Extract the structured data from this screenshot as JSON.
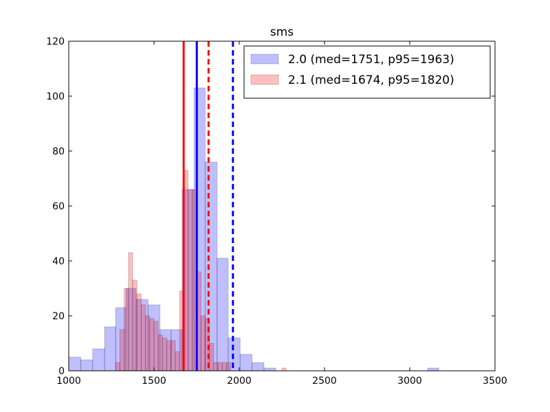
{
  "chart_data": {
    "type": "histogram",
    "title": "sms",
    "xlabel": "",
    "ylabel": "",
    "xlim": [
      1000,
      3500
    ],
    "ylim": [
      0,
      120
    ],
    "xticks": [
      1000,
      1500,
      2000,
      2500,
      3000,
      3500
    ],
    "yticks": [
      0,
      20,
      40,
      60,
      80,
      100,
      120
    ],
    "grid": false,
    "legend_position": "top-right",
    "series": [
      {
        "name": "2.0 (med=1751, p95=1963)",
        "fill": "#0000ff",
        "fill_opacity": 0.25,
        "bins": [
          {
            "x0": 1000,
            "x1": 1070,
            "count": 5
          },
          {
            "x0": 1070,
            "x1": 1140,
            "count": 4
          },
          {
            "x0": 1140,
            "x1": 1210,
            "count": 8
          },
          {
            "x0": 1210,
            "x1": 1275,
            "count": 16
          },
          {
            "x0": 1275,
            "x1": 1335,
            "count": 23
          },
          {
            "x0": 1335,
            "x1": 1395,
            "count": 30
          },
          {
            "x0": 1395,
            "x1": 1465,
            "count": 26
          },
          {
            "x0": 1465,
            "x1": 1535,
            "count": 24
          },
          {
            "x0": 1535,
            "x1": 1600,
            "count": 15
          },
          {
            "x0": 1600,
            "x1": 1665,
            "count": 15
          },
          {
            "x0": 1665,
            "x1": 1735,
            "count": 66
          },
          {
            "x0": 1735,
            "x1": 1800,
            "count": 103
          },
          {
            "x0": 1800,
            "x1": 1870,
            "count": 76
          },
          {
            "x0": 1870,
            "x1": 1935,
            "count": 41
          },
          {
            "x0": 1935,
            "x1": 2005,
            "count": 12
          },
          {
            "x0": 2005,
            "x1": 2075,
            "count": 6
          },
          {
            "x0": 2075,
            "x1": 2145,
            "count": 3
          },
          {
            "x0": 2145,
            "x1": 2215,
            "count": 1
          },
          {
            "x0": 3105,
            "x1": 3170,
            "count": 1
          }
        ],
        "median": 1751,
        "p95": 1963,
        "median_line_color": "#0000ff"
      },
      {
        "name": "2.1 (med=1674, p95=1820)",
        "fill": "#ff0000",
        "fill_opacity": 0.25,
        "bins": [
          {
            "x0": 1275,
            "x1": 1300,
            "count": 3
          },
          {
            "x0": 1300,
            "x1": 1325,
            "count": 15
          },
          {
            "x0": 1325,
            "x1": 1350,
            "count": 30
          },
          {
            "x0": 1350,
            "x1": 1375,
            "count": 43
          },
          {
            "x0": 1375,
            "x1": 1400,
            "count": 33
          },
          {
            "x0": 1400,
            "x1": 1425,
            "count": 28
          },
          {
            "x0": 1425,
            "x1": 1450,
            "count": 24
          },
          {
            "x0": 1450,
            "x1": 1475,
            "count": 20
          },
          {
            "x0": 1475,
            "x1": 1500,
            "count": 19
          },
          {
            "x0": 1500,
            "x1": 1525,
            "count": 18
          },
          {
            "x0": 1525,
            "x1": 1550,
            "count": 13
          },
          {
            "x0": 1550,
            "x1": 1575,
            "count": 12
          },
          {
            "x0": 1575,
            "x1": 1600,
            "count": 11
          },
          {
            "x0": 1600,
            "x1": 1625,
            "count": 11
          },
          {
            "x0": 1625,
            "x1": 1650,
            "count": 7
          },
          {
            "x0": 1650,
            "x1": 1675,
            "count": 29
          },
          {
            "x0": 1675,
            "x1": 1700,
            "count": 73
          },
          {
            "x0": 1700,
            "x1": 1725,
            "count": 66
          },
          {
            "x0": 1725,
            "x1": 1750,
            "count": 66
          },
          {
            "x0": 1750,
            "x1": 1775,
            "count": 36
          },
          {
            "x0": 1775,
            "x1": 1800,
            "count": 20
          },
          {
            "x0": 1800,
            "x1": 1825,
            "count": 19
          },
          {
            "x0": 1825,
            "x1": 1850,
            "count": 10
          },
          {
            "x0": 1850,
            "x1": 1875,
            "count": 3
          },
          {
            "x0": 1875,
            "x1": 1900,
            "count": 3
          },
          {
            "x0": 1900,
            "x1": 1925,
            "count": 3
          },
          {
            "x0": 1925,
            "x1": 1950,
            "count": 3
          },
          {
            "x0": 2250,
            "x1": 2275,
            "count": 1
          }
        ],
        "median": 1674,
        "p95": 1820,
        "median_line_color": "#ff0000"
      }
    ]
  }
}
